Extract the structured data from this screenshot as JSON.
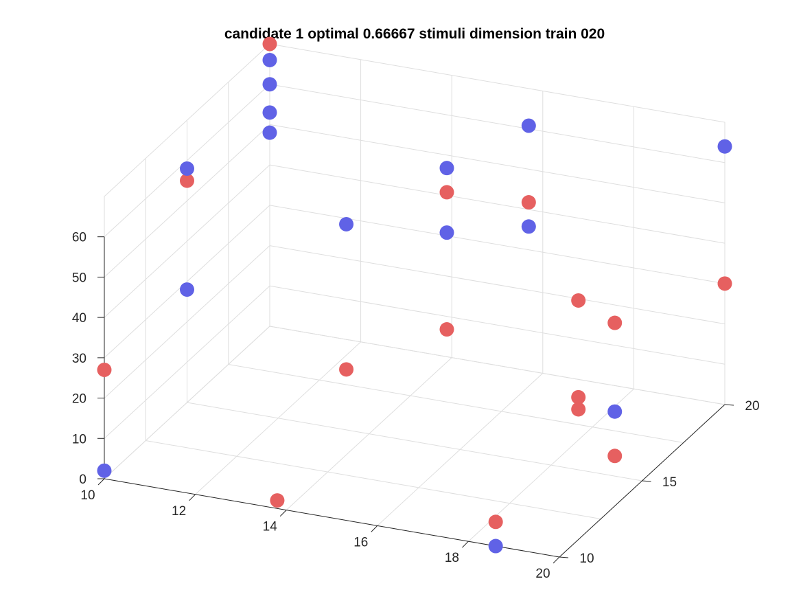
{
  "chart_data": {
    "type": "scatter",
    "title": "candidate 1 optimal 0.66667 stimuli dimension train 020",
    "xlabel": "",
    "ylabel": "",
    "zlabel": "",
    "xlim": [
      10,
      20
    ],
    "ylim": [
      10,
      20
    ],
    "zlim": [
      0,
      60
    ],
    "x_ticks": [
      "10",
      "12",
      "14",
      "16",
      "18",
      "20"
    ],
    "y_ticks": [
      "10",
      "15",
      "20"
    ],
    "z_ticks": [
      "0",
      "10",
      "20",
      "30",
      "40",
      "50",
      "60"
    ],
    "grid": true,
    "legend": "none",
    "view": "3d",
    "series": [
      {
        "color": "#e66060",
        "points": [
          {
            "x": 10,
            "y": 10,
            "z": 27
          },
          {
            "x": 10,
            "y": 20,
            "z": 70
          },
          {
            "x": 10,
            "y": 15,
            "z": 55
          },
          {
            "x": 13.8,
            "y": 10,
            "z": 2
          },
          {
            "x": 13.5,
            "y": 15,
            "z": 15
          },
          {
            "x": 14.8,
            "y": 17.5,
            "z": 18
          },
          {
            "x": 14.8,
            "y": 17.5,
            "z": 52
          },
          {
            "x": 16.6,
            "y": 17.5,
            "z": 53
          },
          {
            "x": 18.6,
            "y": 15,
            "z": 15
          },
          {
            "x": 18.6,
            "y": 15,
            "z": 18
          },
          {
            "x": 18.6,
            "y": 15,
            "z": 42
          },
          {
            "x": 18.6,
            "y": 10,
            "z": 6
          },
          {
            "x": 19.4,
            "y": 15,
            "z": 5
          },
          {
            "x": 19.4,
            "y": 15,
            "z": 38
          },
          {
            "x": 20,
            "y": 20,
            "z": 30
          }
        ]
      },
      {
        "color": "#6062e6",
        "points": [
          {
            "x": 10,
            "y": 10,
            "z": 2
          },
          {
            "x": 10,
            "y": 15,
            "z": 28
          },
          {
            "x": 10,
            "y": 15,
            "z": 58
          },
          {
            "x": 10,
            "y": 20,
            "z": 48
          },
          {
            "x": 10,
            "y": 20,
            "z": 53
          },
          {
            "x": 10,
            "y": 20,
            "z": 60
          },
          {
            "x": 10,
            "y": 20,
            "z": 66
          },
          {
            "x": 13.5,
            "y": 15,
            "z": 51
          },
          {
            "x": 14.8,
            "y": 17.5,
            "z": 42
          },
          {
            "x": 14.8,
            "y": 17.5,
            "z": 58
          },
          {
            "x": 16.6,
            "y": 17.5,
            "z": 47
          },
          {
            "x": 16.6,
            "y": 17.5,
            "z": 72
          },
          {
            "x": 18.6,
            "y": 10,
            "z": 0
          },
          {
            "x": 19.4,
            "y": 15,
            "z": 16
          },
          {
            "x": 20,
            "y": 20,
            "z": 64
          }
        ]
      }
    ]
  }
}
